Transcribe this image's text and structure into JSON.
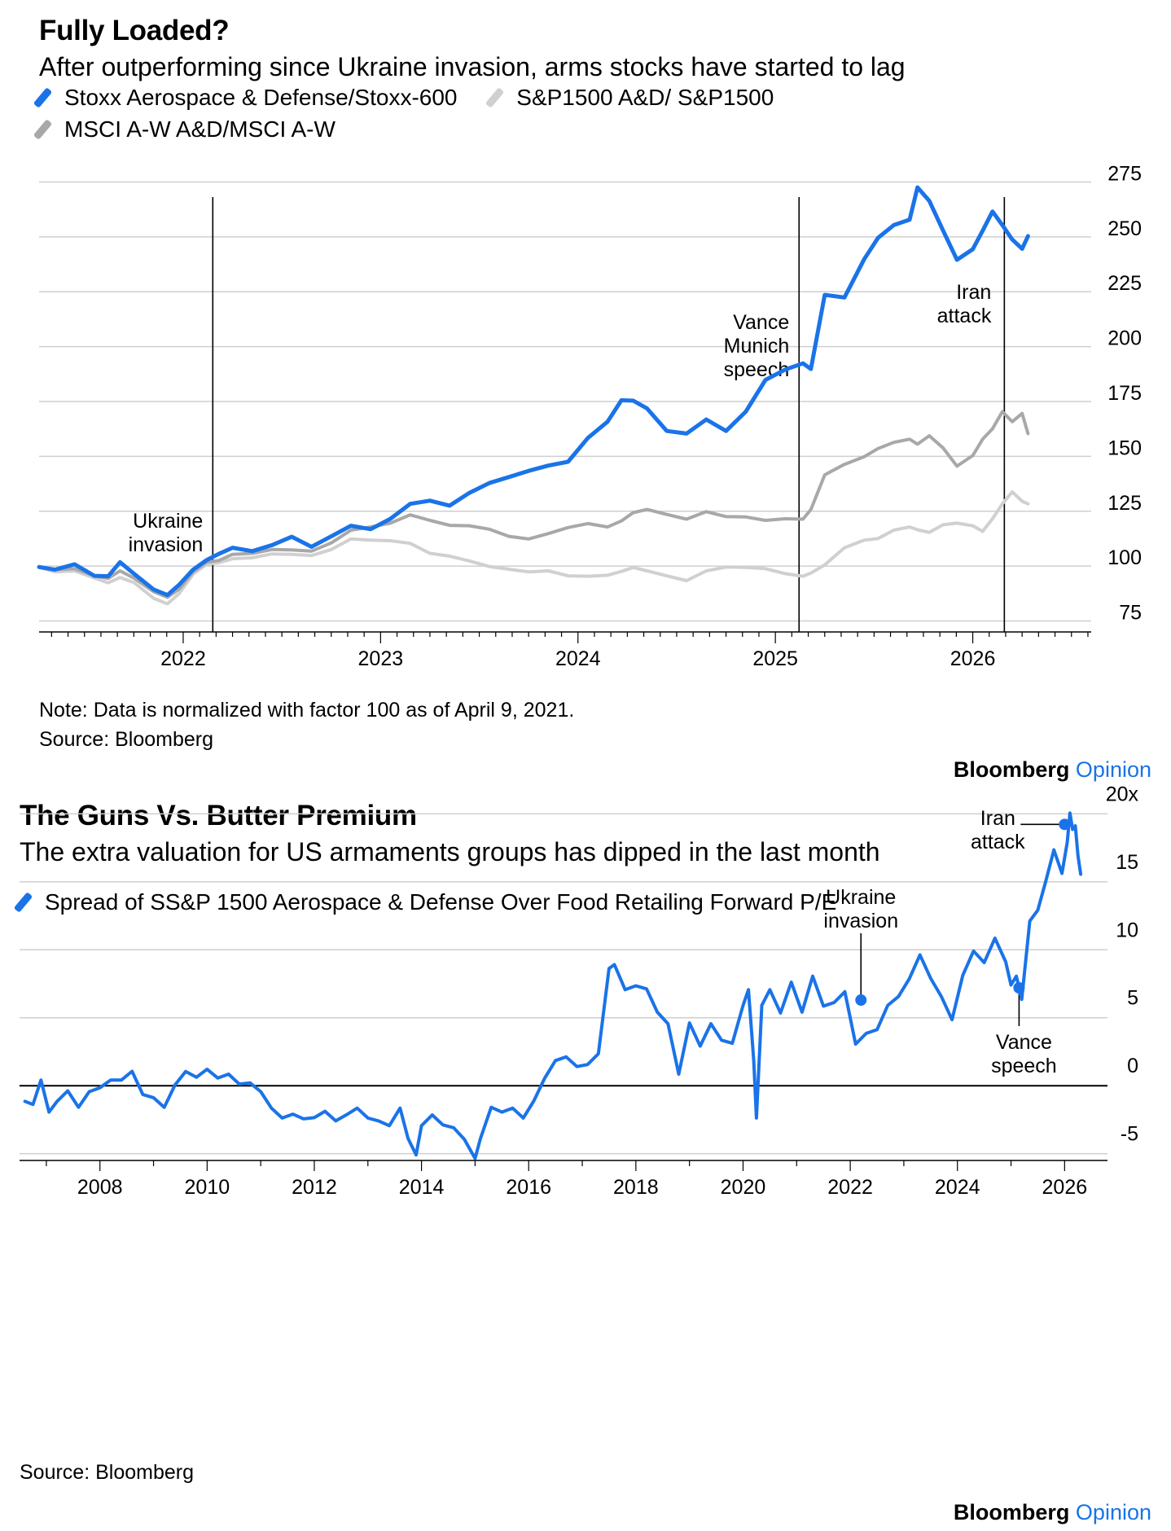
{
  "chart_data": [
    {
      "type": "line",
      "title": "Fully Loaded?",
      "subtitle": "After outperforming since Ukraine invasion, arms stocks have started to lag",
      "legend": [
        "Stoxx Aerospace & Defense/Stoxx-600",
        "S&P1500 A&D/ S&P1500",
        "MSCI A-W A&D/MSCI A-W"
      ],
      "colors": [
        "#1a73e8",
        "#d0d0d0",
        "#a8a8a8"
      ],
      "xlim": [
        2021.27,
        2026.6
      ],
      "ylim": [
        70,
        280
      ],
      "yticks": [
        75,
        100,
        125,
        150,
        175,
        200,
        225,
        250,
        275
      ],
      "xticks": [
        2022,
        2023,
        2024,
        2025,
        2026
      ],
      "series": [
        {
          "name": "Stoxx Aerospace & Defense/Stoxx-600",
          "x": [
            2021.27,
            2021.35,
            2021.45,
            2021.55,
            2021.62,
            2021.68,
            2021.75,
            2021.85,
            2021.92,
            2021.98,
            2022.05,
            2022.12,
            2022.18,
            2022.25,
            2022.35,
            2022.45,
            2022.55,
            2022.65,
            2022.75,
            2022.85,
            2022.95,
            2023.05,
            2023.15,
            2023.25,
            2023.35,
            2023.45,
            2023.55,
            2023.65,
            2023.75,
            2023.85,
            2023.95,
            2024.05,
            2024.15,
            2024.22,
            2024.28,
            2024.35,
            2024.45,
            2024.55,
            2024.65,
            2024.75,
            2024.85,
            2024.95,
            2025.05,
            2025.14,
            2025.18,
            2025.25,
            2025.35,
            2025.45,
            2025.52,
            2025.6,
            2025.68,
            2025.72,
            2025.78,
            2025.85,
            2025.92,
            2026.0,
            2026.05,
            2026.1,
            2026.15,
            2026.2,
            2026.25,
            2026.28
          ],
          "values": [
            100,
            98,
            101,
            96,
            95,
            102,
            97,
            89,
            87,
            92,
            98,
            103,
            106,
            108,
            107,
            110,
            113,
            109,
            114,
            118,
            117,
            122,
            128,
            130,
            128,
            133,
            138,
            141,
            143,
            146,
            148,
            158,
            166,
            176,
            175,
            172,
            162,
            160,
            167,
            162,
            170,
            185,
            190,
            192,
            190,
            224,
            222,
            240,
            250,
            255,
            258,
            273,
            266,
            253,
            240,
            244,
            253,
            262,
            255,
            249,
            245,
            250
          ]
        },
        {
          "name": "S&P1500 A&D/ S&P1500",
          "x": [
            2021.27,
            2021.35,
            2021.45,
            2021.55,
            2021.62,
            2021.68,
            2021.75,
            2021.85,
            2021.92,
            2021.98,
            2022.05,
            2022.12,
            2022.18,
            2022.25,
            2022.35,
            2022.45,
            2022.55,
            2022.65,
            2022.75,
            2022.85,
            2022.95,
            2023.05,
            2023.15,
            2023.25,
            2023.35,
            2023.45,
            2023.55,
            2023.65,
            2023.75,
            2023.85,
            2023.95,
            2024.05,
            2024.15,
            2024.22,
            2024.28,
            2024.35,
            2024.45,
            2024.55,
            2024.65,
            2024.75,
            2024.85,
            2024.95,
            2025.05,
            2025.14,
            2025.18,
            2025.25,
            2025.35,
            2025.45,
            2025.52,
            2025.6,
            2025.68,
            2025.72,
            2025.78,
            2025.85,
            2025.92,
            2026.0,
            2026.05,
            2026.1,
            2026.15,
            2026.2,
            2026.25,
            2026.28
          ],
          "values": [
            100,
            97,
            98,
            95,
            92,
            95,
            93,
            85,
            83,
            88,
            96,
            101,
            102,
            103,
            104,
            106,
            105,
            105,
            108,
            112,
            112,
            112,
            110,
            106,
            105,
            102,
            100,
            99,
            97,
            98,
            96,
            95,
            96,
            98,
            99,
            98,
            96,
            93,
            98,
            100,
            99,
            99,
            97,
            95,
            97,
            101,
            108,
            112,
            113,
            116,
            118,
            117,
            115,
            119,
            120,
            118,
            116,
            122,
            128,
            134,
            130,
            128
          ]
        },
        {
          "name": "MSCI A-W A&D/MSCI A-W",
          "x": [
            2021.27,
            2021.35,
            2021.45,
            2021.55,
            2021.62,
            2021.68,
            2021.75,
            2021.85,
            2021.92,
            2021.98,
            2022.05,
            2022.12,
            2022.18,
            2022.25,
            2022.35,
            2022.45,
            2022.55,
            2022.65,
            2022.75,
            2022.85,
            2022.95,
            2023.05,
            2023.15,
            2023.25,
            2023.35,
            2023.45,
            2023.55,
            2023.65,
            2023.75,
            2023.85,
            2023.95,
            2024.05,
            2024.15,
            2024.22,
            2024.28,
            2024.35,
            2024.45,
            2024.55,
            2024.65,
            2024.75,
            2024.85,
            2024.95,
            2025.05,
            2025.14,
            2025.18,
            2025.25,
            2025.35,
            2025.45,
            2025.52,
            2025.6,
            2025.68,
            2025.72,
            2025.78,
            2025.85,
            2025.92,
            2026.0,
            2026.05,
            2026.1,
            2026.15,
            2026.2,
            2026.25,
            2026.28
          ],
          "values": [
            100,
            98,
            99,
            96,
            94,
            98,
            95,
            88,
            86,
            90,
            97,
            102,
            103,
            105,
            106,
            108,
            107,
            107,
            111,
            116,
            118,
            120,
            123,
            121,
            119,
            118,
            117,
            114,
            112,
            115,
            118,
            119,
            118,
            121,
            124,
            126,
            124,
            121,
            125,
            123,
            122,
            121,
            122,
            121,
            126,
            142,
            146,
            150,
            154,
            156,
            158,
            156,
            159,
            154,
            146,
            150,
            158,
            163,
            170,
            166,
            170,
            160
          ]
        }
      ],
      "annotations": [
        {
          "label": [
            "Ukraine",
            "invasion"
          ],
          "x": 2022.15
        },
        {
          "label": [
            "Vance",
            "Munich",
            "speech"
          ],
          "x": 2025.12
        },
        {
          "label": [
            "Iran",
            "attack"
          ],
          "x": 2026.16
        }
      ]
    },
    {
      "type": "line",
      "title": "The Guns Vs. Butter Premium",
      "subtitle": "The extra valuation for US armaments groups has dipped in the last month",
      "legend": [
        "Spread of SS&P 1500 Aerospace & Defense Over Food Retailing Forward P/E"
      ],
      "colors": [
        "#1a73e8"
      ],
      "xlim": [
        2006.5,
        2026.8
      ],
      "ylim": [
        -5.5,
        20.8
      ],
      "yticks": [
        -5,
        0,
        5,
        10,
        15,
        20
      ],
      "ytick_labels": [
        "-5",
        "0",
        "5",
        "10",
        "15",
        "20x"
      ],
      "xticks": [
        2008,
        2010,
        2012,
        2014,
        2016,
        2018,
        2020,
        2022,
        2024,
        2026
      ],
      "series": [
        {
          "name": "Spread of SS&P 1500 Aerospace & Defense Over Food Retailing Forward P/E",
          "x": [
            2006.6,
            2006.75,
            2006.9,
            2007.05,
            2007.2,
            2007.4,
            2007.6,
            2007.8,
            2008.0,
            2008.2,
            2008.4,
            2008.6,
            2008.8,
            2009.0,
            2009.2,
            2009.4,
            2009.6,
            2009.8,
            2010.0,
            2010.2,
            2010.4,
            2010.6,
            2010.8,
            2011.0,
            2011.2,
            2011.4,
            2011.6,
            2011.8,
            2012.0,
            2012.2,
            2012.4,
            2012.6,
            2012.8,
            2013.0,
            2013.2,
            2013.4,
            2013.6,
            2013.75,
            2013.9,
            2014.0,
            2014.2,
            2014.4,
            2014.6,
            2014.8,
            2015.0,
            2015.1,
            2015.3,
            2015.5,
            2015.7,
            2015.9,
            2016.1,
            2016.3,
            2016.5,
            2016.7,
            2016.9,
            2017.1,
            2017.3,
            2017.5,
            2017.6,
            2017.8,
            2018.0,
            2018.2,
            2018.4,
            2018.6,
            2018.8,
            2019.0,
            2019.2,
            2019.4,
            2019.6,
            2019.8,
            2020.0,
            2020.1,
            2020.2,
            2020.25,
            2020.35,
            2020.5,
            2020.7,
            2020.9,
            2021.1,
            2021.3,
            2021.5,
            2021.7,
            2021.9,
            2022.1,
            2022.3,
            2022.5,
            2022.7,
            2022.9,
            2023.1,
            2023.3,
            2023.5,
            2023.7,
            2023.9,
            2024.1,
            2024.3,
            2024.5,
            2024.7,
            2024.9,
            2025.0,
            2025.1,
            2025.2,
            2025.35,
            2025.5,
            2025.65,
            2025.8,
            2025.95,
            2026.05,
            2026.1,
            2026.15,
            2026.2,
            2026.25,
            2026.3
          ],
          "values": [
            -1,
            -1.5,
            0.5,
            -2,
            -1,
            -0.5,
            -1.5,
            -0.5,
            0,
            0.3,
            0.5,
            1,
            -0.5,
            -1,
            -1.5,
            0,
            1.2,
            0.5,
            1.3,
            0.5,
            1,
            0,
            0.3,
            -0.5,
            -1.5,
            -2.5,
            -2,
            -2.5,
            -2.2,
            -2,
            -2.5,
            -2.2,
            -1.5,
            -2.5,
            -2.5,
            -3,
            -1.5,
            -4,
            -5,
            -3,
            -2,
            -3,
            -3,
            -4,
            -5.2,
            -4,
            -1.5,
            -2,
            -1.5,
            -2.5,
            -1,
            0.5,
            2,
            2,
            1.5,
            1.5,
            2.5,
            8.5,
            9,
            7,
            7.5,
            7,
            5.5,
            4.5,
            1,
            4.5,
            3,
            4.5,
            3.5,
            3,
            6,
            7,
            2,
            -2.5,
            6,
            7,
            5.5,
            7.5,
            5.5,
            8,
            6,
            6,
            7,
            3,
            4,
            4,
            6,
            6.5,
            8,
            9.5,
            8,
            6.5,
            5,
            8,
            10,
            9,
            11,
            9,
            7.5,
            8,
            6.5,
            12,
            13,
            15,
            17.5,
            15.5,
            18,
            20,
            19,
            19,
            17,
            15.5
          ]
        }
      ],
      "annotations": [
        {
          "label": [
            "Ukraine",
            "invasion"
          ],
          "x": 2022.2,
          "y": 6.3
        },
        {
          "label": [
            "Vance",
            "speech"
          ],
          "x": 2025.15,
          "y": 7.2
        },
        {
          "label": [
            "Iran",
            "attack"
          ],
          "x": 2026.0,
          "y": 19.7
        }
      ]
    }
  ],
  "notes": {
    "chart1_note": "Note: Data is normalized with factor 100 as of April 9, 2021.",
    "chart1_source": "Source: Bloomberg",
    "chart2_source": "Source: Bloomberg"
  },
  "brand": {
    "name": "Bloomberg",
    "suffix": "Opinion"
  }
}
